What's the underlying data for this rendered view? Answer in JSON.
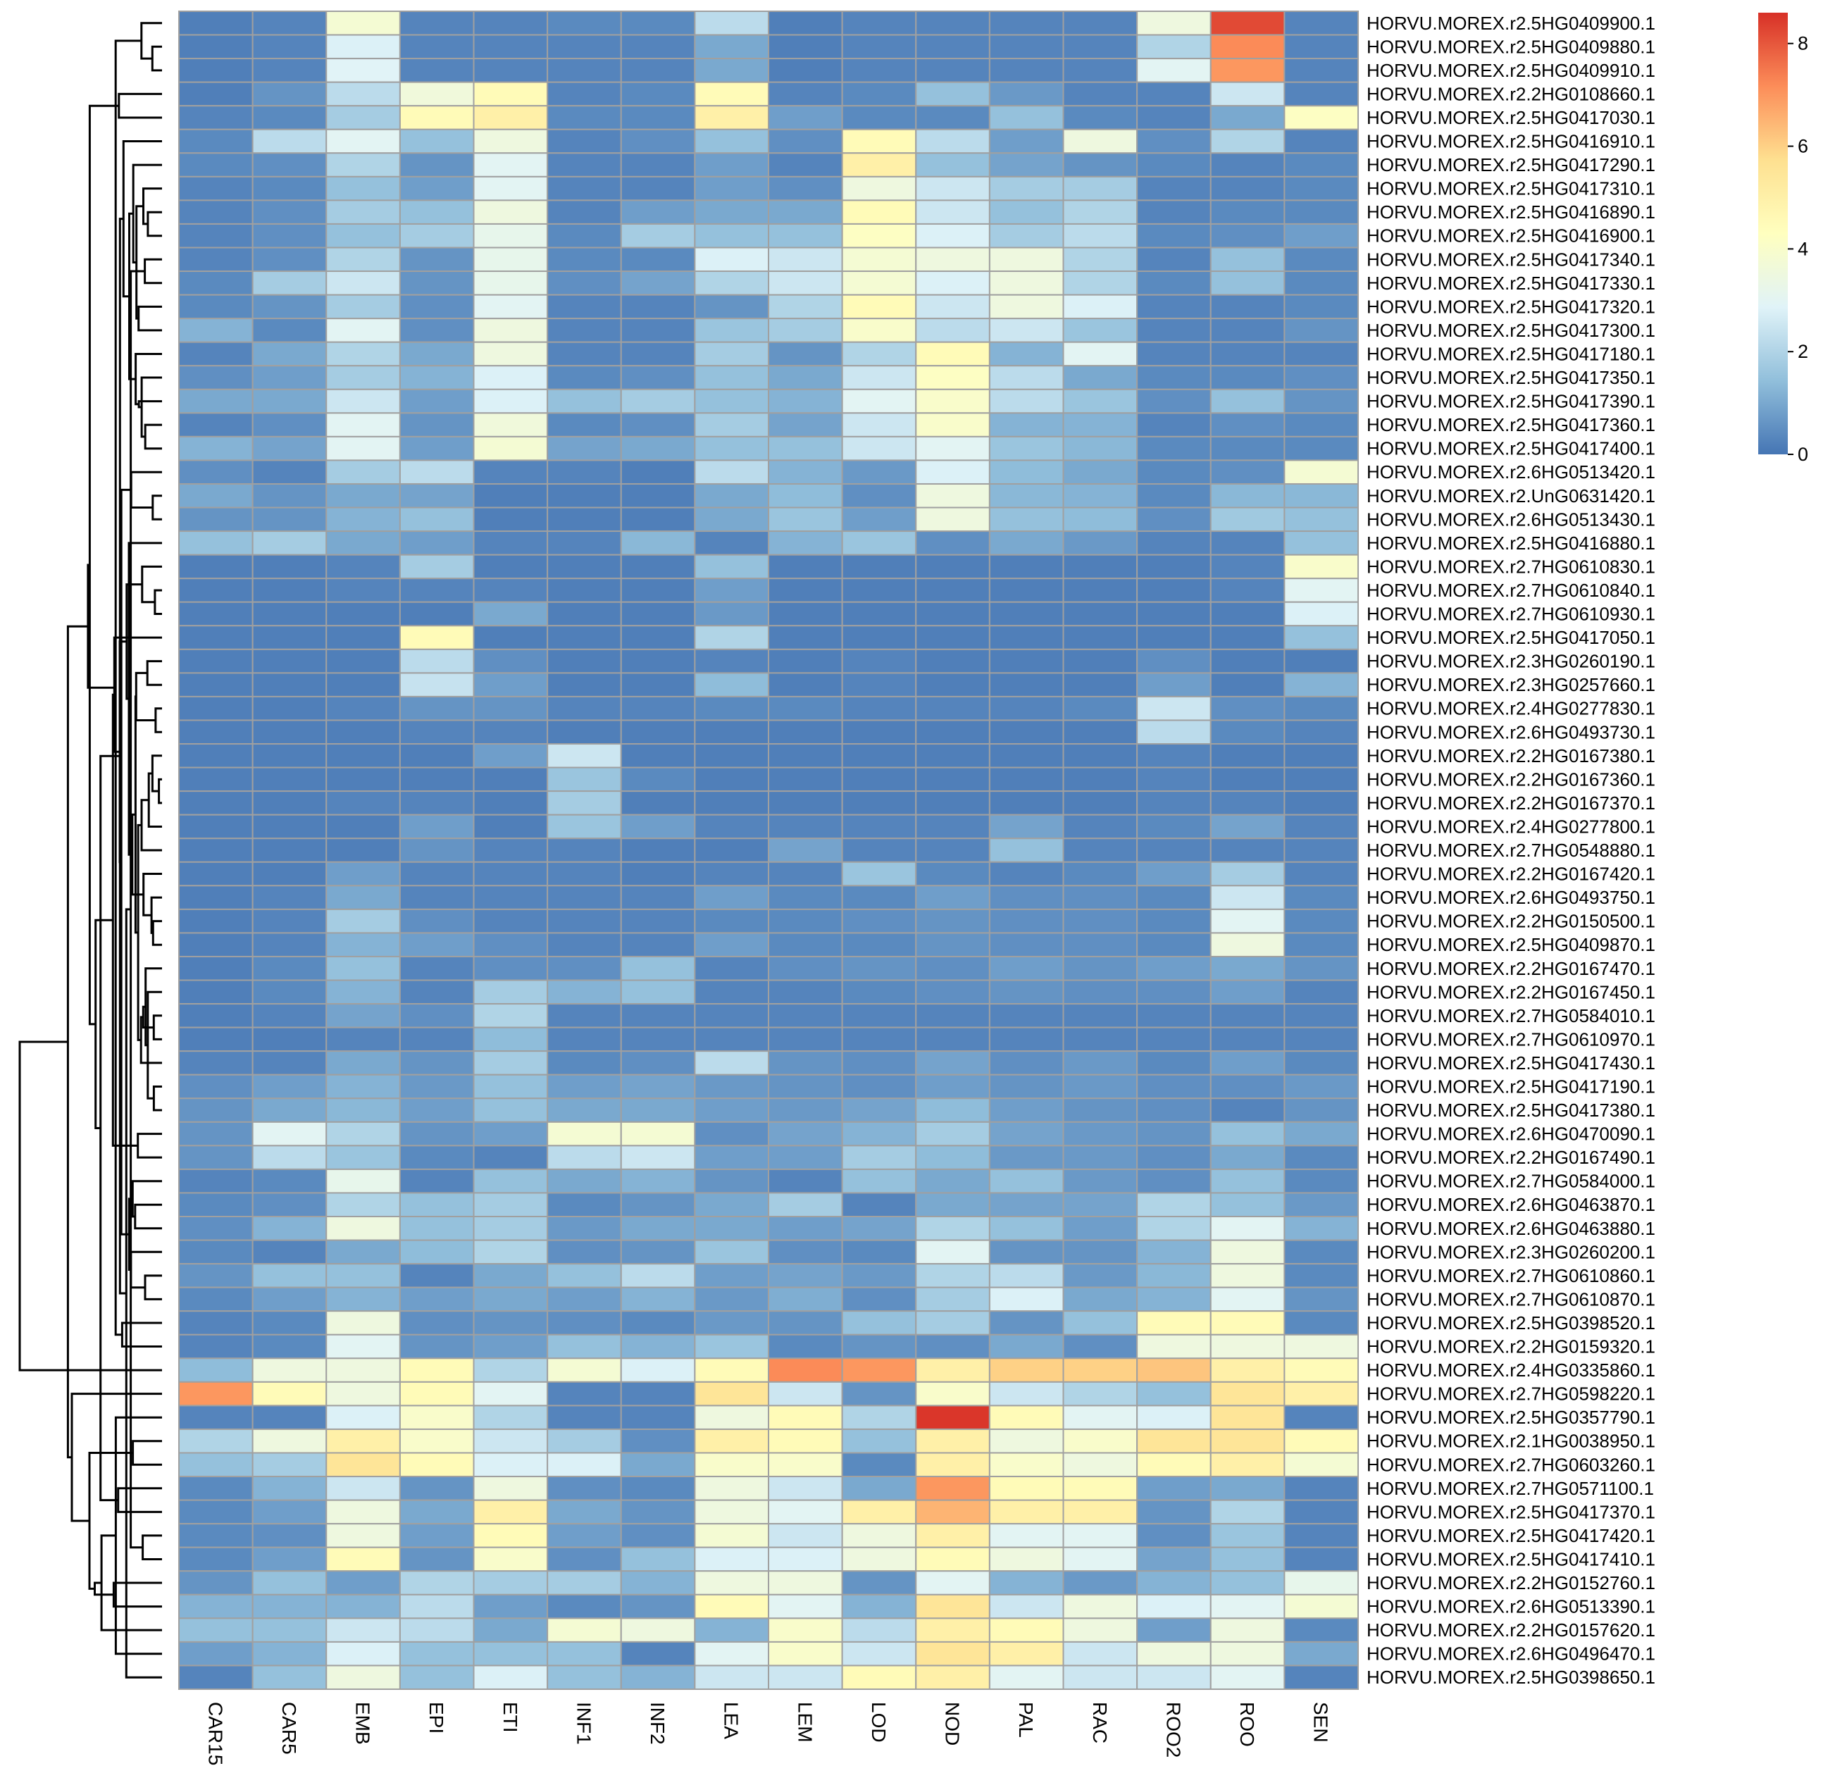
{
  "chart_data": {
    "type": "heatmap",
    "title": "",
    "xlabel": "",
    "ylabel": "",
    "columns": [
      "CAR15",
      "CAR5",
      "EMB",
      "EPI",
      "ETI",
      "INF1",
      "INF2",
      "LEA",
      "LEM",
      "LOD",
      "NOD",
      "PAL",
      "RAC",
      "ROO2",
      "ROO",
      "SEN"
    ],
    "rows": [
      "HORVU.MOREX.r2.5HG0409900.1",
      "HORVU.MOREX.r2.5HG0409880.1",
      "HORVU.MOREX.r2.5HG0409910.1",
      "HORVU.MOREX.r2.2HG0108660.1",
      "HORVU.MOREX.r2.5HG0417030.1",
      "HORVU.MOREX.r2.5HG0416910.1",
      "HORVU.MOREX.r2.5HG0417290.1",
      "HORVU.MOREX.r2.5HG0417310.1",
      "HORVU.MOREX.r2.5HG0416890.1",
      "HORVU.MOREX.r2.5HG0416900.1",
      "HORVU.MOREX.r2.5HG0417340.1",
      "HORVU.MOREX.r2.5HG0417330.1",
      "HORVU.MOREX.r2.5HG0417320.1",
      "HORVU.MOREX.r2.5HG0417300.1",
      "HORVU.MOREX.r2.5HG0417180.1",
      "HORVU.MOREX.r2.5HG0417350.1",
      "HORVU.MOREX.r2.5HG0417390.1",
      "HORVU.MOREX.r2.5HG0417360.1",
      "HORVU.MOREX.r2.5HG0417400.1",
      "HORVU.MOREX.r2.6HG0513420.1",
      "HORVU.MOREX.r2.UnG0631420.1",
      "HORVU.MOREX.r2.6HG0513430.1",
      "HORVU.MOREX.r2.5HG0416880.1",
      "HORVU.MOREX.r2.7HG0610830.1",
      "HORVU.MOREX.r2.7HG0610840.1",
      "HORVU.MOREX.r2.7HG0610930.1",
      "HORVU.MOREX.r2.5HG0417050.1",
      "HORVU.MOREX.r2.3HG0260190.1",
      "HORVU.MOREX.r2.3HG0257660.1",
      "HORVU.MOREX.r2.4HG0277830.1",
      "HORVU.MOREX.r2.6HG0493730.1",
      "HORVU.MOREX.r2.2HG0167380.1",
      "HORVU.MOREX.r2.2HG0167360.1",
      "HORVU.MOREX.r2.2HG0167370.1",
      "HORVU.MOREX.r2.4HG0277800.1",
      "HORVU.MOREX.r2.7HG0548880.1",
      "HORVU.MOREX.r2.2HG0167420.1",
      "HORVU.MOREX.r2.6HG0493750.1",
      "HORVU.MOREX.r2.2HG0150500.1",
      "HORVU.MOREX.r2.5HG0409870.1",
      "HORVU.MOREX.r2.2HG0167470.1",
      "HORVU.MOREX.r2.2HG0167450.1",
      "HORVU.MOREX.r2.7HG0584010.1",
      "HORVU.MOREX.r2.7HG0610970.1",
      "HORVU.MOREX.r2.5HG0417430.1",
      "HORVU.MOREX.r2.5HG0417190.1",
      "HORVU.MOREX.r2.5HG0417380.1",
      "HORVU.MOREX.r2.6HG0470090.1",
      "HORVU.MOREX.r2.2HG0167490.1",
      "HORVU.MOREX.r2.7HG0584000.1",
      "HORVU.MOREX.r2.6HG0463870.1",
      "HORVU.MOREX.r2.6HG0463880.1",
      "HORVU.MOREX.r2.3HG0260200.1",
      "HORVU.MOREX.r2.7HG0610860.1",
      "HORVU.MOREX.r2.7HG0610870.1",
      "HORVU.MOREX.r2.5HG0398520.1",
      "HORVU.MOREX.r2.2HG0159320.1",
      "HORVU.MOREX.r2.4HG0335860.1",
      "HORVU.MOREX.r2.7HG0598220.1",
      "HORVU.MOREX.r2.5HG0357790.1",
      "HORVU.MOREX.r2.1HG0038950.1",
      "HORVU.MOREX.r2.7HG0603260.1",
      "HORVU.MOREX.r2.7HG0571100.1",
      "HORVU.MOREX.r2.5HG0417370.1",
      "HORVU.MOREX.r2.5HG0417420.1",
      "HORVU.MOREX.r2.5HG0417410.1",
      "HORVU.MOREX.r2.2HG0152760.1",
      "HORVU.MOREX.r2.6HG0513390.1",
      "HORVU.MOREX.r2.2HG0157620.1",
      "HORVU.MOREX.r2.6HG0496470.1",
      "HORVU.MOREX.r2.5HG0398650.1"
    ],
    "values": [
      [
        0.2,
        0.3,
        3.8,
        0.3,
        0.3,
        0.4,
        0.4,
        2.2,
        0.2,
        0.3,
        0.3,
        0.3,
        0.3,
        3.5,
        8.2,
        0.3
      ],
      [
        0.2,
        0.3,
        2.8,
        0.3,
        0.3,
        0.3,
        0.3,
        1.0,
        0.2,
        0.3,
        0.3,
        0.3,
        0.3,
        2.0,
        7.2,
        0.3
      ],
      [
        0.2,
        0.3,
        2.9,
        0.3,
        0.3,
        0.3,
        0.3,
        1.0,
        0.2,
        0.3,
        0.3,
        0.3,
        0.3,
        3.0,
        7.0,
        0.3
      ],
      [
        0.2,
        0.6,
        2.2,
        3.6,
        4.5,
        0.3,
        0.4,
        4.5,
        0.3,
        0.4,
        1.5,
        0.7,
        0.3,
        0.3,
        2.5,
        0.3
      ],
      [
        0.3,
        0.4,
        1.8,
        4.5,
        5.0,
        0.4,
        0.4,
        5.0,
        0.8,
        0.4,
        0.4,
        1.5,
        0.4,
        0.3,
        1.0,
        4.2
      ],
      [
        0.4,
        2.2,
        3.0,
        1.5,
        3.5,
        0.3,
        0.5,
        1.5,
        0.5,
        4.5,
        2.2,
        0.8,
        3.5,
        0.5,
        2.0,
        0.3
      ],
      [
        0.4,
        0.5,
        2.0,
        0.6,
        3.0,
        0.3,
        0.3,
        0.8,
        0.3,
        5.0,
        1.5,
        0.9,
        0.6,
        0.4,
        0.3,
        0.4
      ],
      [
        0.3,
        0.4,
        1.5,
        0.8,
        3.0,
        0.3,
        0.3,
        0.8,
        0.5,
        3.5,
        2.5,
        1.8,
        1.8,
        0.3,
        0.3,
        0.4
      ],
      [
        0.3,
        0.5,
        1.8,
        1.5,
        3.5,
        0.3,
        0.8,
        1.0,
        1.0,
        4.5,
        2.5,
        1.5,
        2.0,
        0.3,
        0.4,
        0.4
      ],
      [
        0.3,
        0.5,
        1.5,
        1.8,
        3.2,
        0.4,
        1.8,
        1.5,
        1.5,
        4.2,
        2.8,
        1.8,
        2.2,
        0.4,
        0.5,
        0.8
      ],
      [
        0.3,
        0.5,
        2.0,
        0.6,
        3.2,
        0.4,
        0.4,
        2.8,
        2.5,
        3.8,
        3.5,
        3.5,
        2.0,
        0.3,
        1.5,
        0.4
      ],
      [
        0.4,
        1.8,
        2.5,
        0.6,
        3.2,
        0.5,
        0.9,
        2.0,
        2.5,
        3.8,
        2.8,
        3.5,
        2.0,
        0.4,
        1.5,
        0.4
      ],
      [
        0.4,
        0.6,
        1.8,
        0.5,
        3.0,
        0.3,
        0.3,
        0.6,
        2.0,
        4.5,
        2.5,
        3.5,
        2.8,
        0.3,
        0.3,
        0.4
      ],
      [
        1.2,
        0.4,
        3.0,
        0.5,
        3.5,
        0.3,
        0.3,
        1.6,
        1.8,
        4.0,
        2.2,
        2.5,
        1.6,
        0.3,
        0.3,
        0.6
      ],
      [
        0.3,
        1.0,
        2.0,
        1.0,
        3.5,
        0.3,
        0.3,
        1.8,
        0.6,
        2.0,
        4.5,
        1.2,
        3.0,
        0.3,
        0.3,
        0.3
      ],
      [
        0.5,
        0.8,
        1.8,
        1.2,
        2.8,
        0.4,
        0.5,
        1.5,
        1.0,
        2.5,
        4.2,
        2.2,
        1.0,
        0.4,
        0.4,
        0.5
      ],
      [
        1.0,
        1.0,
        2.5,
        0.8,
        2.8,
        1.5,
        1.8,
        1.5,
        1.2,
        3.0,
        4.0,
        2.2,
        1.6,
        0.5,
        1.5,
        0.6
      ],
      [
        0.3,
        0.5,
        3.0,
        0.6,
        3.6,
        0.4,
        0.5,
        1.8,
        0.9,
        2.5,
        4.0,
        1.2,
        1.2,
        0.3,
        0.5,
        0.4
      ],
      [
        1.2,
        0.9,
        3.0,
        0.8,
        3.8,
        0.9,
        1.0,
        1.5,
        1.5,
        2.5,
        3.0,
        1.6,
        1.3,
        0.4,
        0.4,
        0.4
      ],
      [
        0.5,
        0.3,
        1.8,
        2.2,
        0.3,
        0.3,
        0.2,
        2.2,
        1.2,
        0.7,
        2.8,
        1.4,
        1.0,
        0.4,
        0.5,
        3.8
      ],
      [
        1.0,
        0.6,
        1.0,
        0.9,
        0.2,
        0.2,
        0.2,
        1.0,
        1.4,
        0.5,
        3.5,
        1.3,
        1.2,
        0.4,
        1.3,
        1.3
      ],
      [
        0.6,
        0.6,
        1.2,
        1.5,
        0.2,
        0.2,
        0.2,
        1.0,
        1.6,
        0.8,
        3.5,
        1.5,
        1.4,
        0.5,
        1.7,
        1.5
      ],
      [
        1.5,
        1.8,
        1.0,
        0.8,
        0.3,
        0.3,
        1.3,
        0.3,
        1.2,
        1.6,
        0.5,
        1.0,
        0.7,
        0.3,
        0.3,
        1.5
      ],
      [
        0.2,
        0.2,
        0.3,
        1.8,
        0.2,
        0.2,
        0.2,
        1.5,
        0.2,
        0.2,
        0.2,
        0.2,
        0.2,
        0.2,
        0.3,
        4.0
      ],
      [
        0.2,
        0.2,
        0.3,
        0.3,
        0.3,
        0.2,
        0.2,
        0.8,
        0.2,
        0.2,
        0.2,
        0.2,
        0.2,
        0.2,
        0.3,
        3.0
      ],
      [
        0.2,
        0.2,
        0.2,
        0.2,
        1.0,
        0.2,
        0.2,
        0.7,
        0.2,
        0.2,
        0.2,
        0.2,
        0.2,
        0.2,
        0.2,
        2.8
      ],
      [
        0.2,
        0.2,
        0.2,
        4.5,
        0.2,
        0.2,
        0.2,
        2.0,
        0.2,
        0.2,
        0.2,
        0.2,
        0.2,
        0.2,
        0.2,
        1.5
      ],
      [
        0.2,
        0.2,
        0.2,
        2.2,
        0.5,
        0.2,
        0.2,
        0.3,
        0.2,
        0.3,
        0.2,
        0.2,
        0.2,
        0.5,
        0.2,
        0.2
      ],
      [
        0.2,
        0.2,
        0.2,
        2.4,
        0.8,
        0.2,
        0.2,
        1.4,
        0.2,
        0.3,
        0.2,
        0.2,
        0.2,
        0.8,
        0.2,
        1.2
      ],
      [
        0.2,
        0.2,
        0.3,
        0.6,
        0.6,
        0.3,
        0.3,
        0.4,
        0.4,
        0.3,
        0.3,
        0.3,
        0.4,
        2.5,
        0.5,
        0.4
      ],
      [
        0.2,
        0.2,
        0.2,
        0.3,
        0.3,
        0.2,
        0.2,
        0.2,
        0.2,
        0.2,
        0.2,
        0.2,
        0.2,
        2.2,
        0.4,
        0.3
      ],
      [
        0.2,
        0.2,
        0.2,
        0.2,
        0.8,
        2.5,
        0.2,
        0.2,
        0.2,
        0.2,
        0.2,
        0.2,
        0.2,
        0.3,
        0.2,
        0.2
      ],
      [
        0.2,
        0.2,
        0.2,
        0.2,
        0.2,
        1.6,
        0.4,
        0.2,
        0.2,
        0.2,
        0.2,
        0.2,
        0.2,
        0.3,
        0.2,
        0.2
      ],
      [
        0.2,
        0.2,
        0.3,
        0.3,
        0.2,
        1.8,
        0.2,
        0.2,
        0.2,
        0.2,
        0.2,
        0.2,
        0.2,
        0.3,
        0.3,
        0.2
      ],
      [
        0.2,
        0.2,
        0.2,
        0.8,
        0.2,
        1.6,
        0.8,
        0.3,
        0.3,
        0.3,
        0.3,
        0.9,
        0.3,
        0.4,
        0.9,
        0.3
      ],
      [
        0.2,
        0.2,
        0.2,
        0.6,
        0.3,
        0.3,
        0.2,
        0.2,
        0.9,
        0.3,
        0.3,
        1.5,
        0.3,
        0.3,
        0.3,
        0.3
      ],
      [
        0.2,
        0.2,
        0.8,
        0.3,
        0.3,
        0.3,
        0.2,
        0.3,
        0.3,
        1.6,
        0.4,
        0.3,
        0.4,
        0.8,
        1.8,
        0.3
      ],
      [
        0.2,
        0.3,
        1.0,
        0.3,
        0.3,
        0.3,
        0.3,
        0.8,
        0.4,
        0.4,
        0.8,
        0.5,
        0.5,
        0.4,
        2.5,
        0.4
      ],
      [
        0.2,
        0.3,
        1.8,
        0.5,
        0.3,
        0.3,
        0.3,
        0.4,
        0.4,
        0.5,
        0.6,
        0.5,
        0.5,
        0.4,
        3.0,
        0.4
      ],
      [
        0.2,
        0.3,
        1.2,
        0.8,
        0.5,
        0.3,
        0.3,
        0.8,
        0.4,
        0.4,
        0.6,
        0.5,
        0.5,
        0.4,
        3.5,
        0.4
      ],
      [
        0.2,
        0.4,
        1.5,
        0.3,
        0.5,
        0.5,
        1.5,
        0.3,
        0.5,
        0.6,
        0.5,
        0.8,
        0.6,
        0.8,
        1.0,
        0.6
      ],
      [
        0.2,
        0.4,
        1.2,
        0.3,
        1.8,
        1.2,
        1.5,
        0.3,
        0.3,
        0.4,
        0.5,
        0.6,
        0.5,
        0.5,
        0.8,
        0.3
      ],
      [
        0.2,
        0.3,
        0.9,
        0.5,
        2.0,
        0.3,
        0.3,
        0.3,
        0.3,
        0.3,
        0.3,
        0.3,
        0.3,
        0.3,
        0.3,
        0.3
      ],
      [
        0.2,
        0.2,
        0.3,
        0.3,
        1.4,
        0.3,
        0.3,
        0.3,
        0.3,
        0.3,
        0.3,
        0.3,
        0.3,
        0.3,
        0.3,
        0.3
      ],
      [
        0.3,
        0.3,
        1.0,
        0.6,
        1.8,
        0.4,
        0.5,
        2.2,
        0.6,
        0.5,
        0.9,
        0.5,
        0.7,
        0.4,
        0.8,
        0.4
      ],
      [
        0.5,
        0.8,
        1.2,
        0.7,
        1.5,
        0.8,
        0.9,
        0.7,
        0.6,
        0.5,
        0.8,
        0.6,
        0.7,
        0.5,
        0.5,
        0.7
      ],
      [
        0.6,
        1.0,
        1.3,
        0.8,
        1.5,
        1.0,
        1.0,
        0.8,
        0.7,
        0.9,
        1.4,
        0.8,
        0.6,
        0.5,
        0.3,
        0.6
      ],
      [
        0.6,
        3.0,
        2.0,
        0.6,
        0.8,
        3.8,
        3.8,
        0.5,
        0.9,
        1.2,
        1.8,
        0.9,
        0.7,
        0.6,
        1.5,
        1.0
      ],
      [
        0.6,
        2.2,
        1.6,
        0.4,
        0.3,
        2.2,
        2.5,
        0.8,
        0.8,
        1.8,
        1.4,
        0.7,
        0.7,
        0.5,
        1.0,
        0.4
      ],
      [
        0.3,
        0.4,
        3.2,
        0.3,
        1.5,
        1.0,
        1.2,
        0.6,
        0.3,
        1.5,
        1.0,
        1.5,
        0.7,
        0.5,
        1.5,
        0.4
      ],
      [
        0.4,
        0.5,
        2.0,
        1.5,
        1.8,
        0.4,
        0.6,
        1.0,
        1.8,
        0.3,
        1.0,
        0.9,
        0.9,
        2.0,
        1.5,
        0.7
      ],
      [
        0.5,
        1.2,
        3.5,
        1.5,
        1.8,
        0.7,
        1.0,
        1.0,
        0.8,
        0.9,
        2.0,
        1.5,
        0.8,
        2.0,
        3.0,
        1.2
      ],
      [
        0.4,
        0.3,
        1.0,
        1.4,
        2.0,
        0.5,
        0.6,
        1.6,
        0.5,
        0.4,
        3.0,
        0.6,
        0.6,
        1.2,
        3.5,
        0.4
      ],
      [
        0.6,
        1.5,
        1.5,
        0.3,
        1.0,
        1.5,
        2.2,
        0.8,
        0.9,
        0.7,
        2.0,
        2.2,
        0.7,
        1.3,
        3.5,
        0.4
      ],
      [
        0.4,
        0.8,
        1.2,
        0.8,
        1.0,
        0.8,
        1.2,
        0.7,
        1.1,
        0.5,
        1.8,
        2.8,
        1.0,
        1.2,
        3.0,
        0.6
      ],
      [
        0.3,
        0.4,
        3.5,
        0.5,
        0.6,
        0.5,
        0.4,
        0.7,
        0.6,
        1.5,
        1.8,
        0.6,
        1.5,
        4.5,
        4.5,
        0.4
      ],
      [
        0.3,
        0.4,
        3.0,
        0.6,
        0.8,
        1.5,
        1.2,
        1.6,
        0.4,
        0.6,
        0.5,
        1.0,
        0.5,
        3.5,
        3.5,
        3.5
      ],
      [
        1.4,
        3.5,
        3.5,
        4.5,
        2.0,
        3.8,
        2.8,
        4.5,
        7.2,
        7.0,
        5.0,
        6.0,
        6.0,
        6.2,
        5.0,
        4.5
      ],
      [
        7.0,
        4.5,
        3.5,
        4.5,
        3.0,
        0.3,
        0.3,
        5.5,
        2.5,
        0.6,
        4.0,
        2.5,
        2.0,
        1.5,
        5.5,
        5.0
      ],
      [
        0.3,
        0.3,
        2.8,
        4.0,
        2.0,
        0.3,
        0.3,
        3.5,
        4.5,
        2.0,
        8.5,
        4.5,
        3.0,
        2.8,
        5.5,
        0.3
      ],
      [
        2.0,
        3.5,
        5.0,
        4.0,
        2.5,
        1.8,
        0.5,
        5.0,
        4.5,
        1.5,
        5.0,
        3.5,
        4.0,
        5.5,
        5.5,
        4.5
      ],
      [
        1.5,
        1.8,
        5.5,
        4.5,
        2.8,
        2.8,
        1.0,
        4.0,
        4.0,
        0.4,
        5.0,
        4.0,
        3.5,
        4.5,
        5.0,
        3.8
      ],
      [
        0.4,
        1.2,
        2.5,
        0.6,
        3.5,
        0.5,
        0.4,
        3.5,
        2.5,
        1.0,
        7.0,
        4.5,
        4.5,
        0.8,
        1.0,
        0.3
      ],
      [
        0.4,
        0.8,
        3.5,
        1.0,
        5.0,
        1.0,
        0.6,
        3.5,
        3.0,
        5.0,
        6.5,
        5.0,
        5.0,
        0.6,
        2.0,
        0.3
      ],
      [
        0.4,
        0.5,
        3.5,
        0.8,
        4.5,
        0.8,
        0.5,
        3.8,
        2.5,
        3.5,
        5.0,
        3.0,
        3.0,
        0.5,
        1.6,
        0.3
      ],
      [
        0.4,
        0.8,
        4.5,
        0.6,
        4.0,
        0.5,
        1.5,
        2.8,
        2.8,
        3.5,
        4.5,
        3.5,
        3.0,
        0.9,
        1.5,
        0.3
      ],
      [
        0.6,
        1.5,
        0.8,
        2.0,
        1.8,
        1.8,
        1.2,
        3.5,
        3.5,
        0.6,
        3.0,
        1.2,
        0.7,
        1.2,
        1.5,
        3.2
      ],
      [
        1.2,
        1.2,
        1.2,
        2.2,
        0.8,
        0.4,
        0.6,
        4.5,
        3.0,
        1.2,
        5.5,
        2.5,
        3.5,
        2.8,
        3.0,
        3.8
      ],
      [
        1.5,
        1.5,
        2.5,
        2.2,
        1.0,
        3.8,
        3.5,
        1.2,
        4.0,
        2.2,
        5.0,
        4.5,
        3.5,
        0.8,
        3.5,
        0.4
      ],
      [
        0.8,
        1.2,
        2.8,
        1.5,
        1.5,
        1.5,
        0.3,
        3.0,
        4.0,
        2.5,
        5.5,
        5.0,
        2.5,
        3.5,
        3.5,
        1.0
      ],
      [
        0.3,
        1.5,
        3.5,
        1.5,
        2.8,
        1.5,
        1.2,
        2.5,
        2.5,
        4.5,
        5.0,
        3.0,
        2.5,
        2.5,
        3.0,
        0.3
      ]
    ],
    "color_scale": {
      "min": 0,
      "max": 8.6,
      "stops": [
        "#4575B4",
        "#91BFDB",
        "#E0F3F8",
        "#FFFFBF",
        "#FEE090",
        "#FC8D59",
        "#D73027"
      ],
      "ticks": [
        "0",
        "2",
        "4",
        "6",
        "8"
      ]
    },
    "grid": true,
    "cell_border_color": "#A0A0A0",
    "legend_position": "top-right",
    "row_dendrogram": "left"
  }
}
